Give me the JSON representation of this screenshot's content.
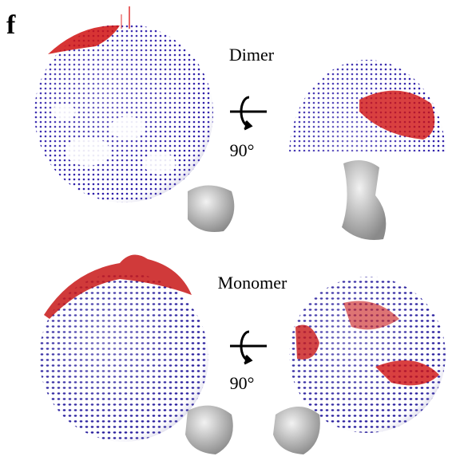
{
  "panel_label": "f",
  "dimer": {
    "label": "Dimer",
    "rotation": "90°"
  },
  "monomer": {
    "label": "Monomer",
    "rotation": "90°"
  }
}
